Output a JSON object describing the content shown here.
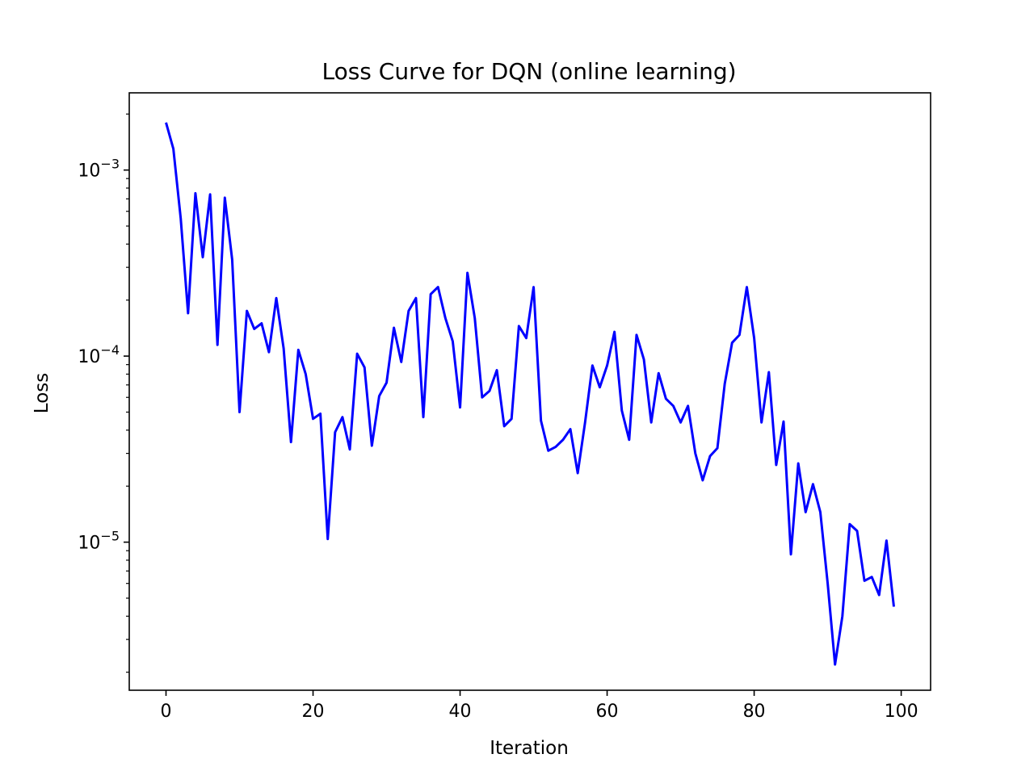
{
  "chart_data": {
    "type": "line",
    "title": "Loss Curve for DQN (online learning)",
    "xlabel": "Iteration",
    "ylabel": "Loss",
    "yscale": "log",
    "xlim": [
      -5,
      104
    ],
    "ylim": [
      1.6e-06,
      0.0026
    ],
    "grid": false,
    "x_ticks": [
      0,
      20,
      40,
      60,
      80,
      100
    ],
    "y_ticks": [
      {
        "value": 0.001,
        "base": "10",
        "exp": "−3"
      },
      {
        "value": 0.0001,
        "base": "10",
        "exp": "−4"
      },
      {
        "value": 1e-05,
        "base": "10",
        "exp": "−5"
      }
    ],
    "series": [
      {
        "color": "#0000ff",
        "x": [
          0,
          1,
          2,
          3,
          4,
          5,
          6,
          7,
          8,
          9,
          10,
          11,
          12,
          13,
          14,
          15,
          16,
          17,
          18,
          19,
          20,
          21,
          22,
          23,
          24,
          25,
          26,
          27,
          28,
          29,
          30,
          31,
          32,
          33,
          34,
          35,
          36,
          37,
          38,
          39,
          40,
          41,
          42,
          43,
          44,
          45,
          46,
          47,
          48,
          49,
          50,
          51,
          52,
          53,
          54,
          55,
          56,
          57,
          58,
          59,
          60,
          61,
          62,
          63,
          64,
          65,
          66,
          67,
          68,
          69,
          70,
          71,
          72,
          73,
          74,
          75,
          76,
          77,
          78,
          79,
          80,
          81,
          82,
          83,
          84,
          85,
          86,
          87,
          88,
          89,
          90,
          91,
          92,
          93,
          94,
          95,
          96,
          97,
          98,
          99
        ],
        "values": [
          0.0018,
          0.0013,
          0.00055,
          0.00017,
          0.00075,
          0.00034,
          0.00074,
          0.000115,
          0.00071,
          0.00033,
          5e-05,
          0.000175,
          0.00014,
          0.00015,
          0.000105,
          0.000205,
          0.00011,
          3.45e-05,
          0.000108,
          8e-05,
          4.6e-05,
          4.9e-05,
          1.04e-05,
          3.9e-05,
          4.7e-05,
          3.15e-05,
          0.000103,
          8.7e-05,
          3.3e-05,
          6.1e-05,
          7.2e-05,
          0.000142,
          9.3e-05,
          0.000175,
          0.000205,
          4.7e-05,
          0.000215,
          0.000235,
          0.00016,
          0.00012,
          5.3e-05,
          0.00028,
          0.00016,
          6e-05,
          6.5e-05,
          8.4e-05,
          4.2e-05,
          4.6e-05,
          0.000145,
          0.000125,
          0.000235,
          4.5e-05,
          3.1e-05,
          3.25e-05,
          3.55e-05,
          4.05e-05,
          2.35e-05,
          4.4e-05,
          8.9e-05,
          6.8e-05,
          8.9e-05,
          0.000135,
          5.1e-05,
          3.55e-05,
          0.00013,
          9.6e-05,
          4.4e-05,
          8.1e-05,
          5.9e-05,
          5.4e-05,
          4.4e-05,
          5.4e-05,
          3e-05,
          2.15e-05,
          2.9e-05,
          3.2e-05,
          7.1e-05,
          0.000118,
          0.00013,
          0.000235,
          0.000125,
          4.4e-05,
          8.2e-05,
          2.6e-05,
          4.45e-05,
          8.6e-06,
          2.65e-05,
          1.45e-05,
          2.05e-05,
          1.45e-05,
          6e-06,
          2.2e-06,
          4e-06,
          1.25e-05,
          1.15e-05,
          6.2e-06,
          6.5e-06,
          5.2e-06,
          1.02e-05,
          4.5e-06
        ]
      }
    ]
  }
}
